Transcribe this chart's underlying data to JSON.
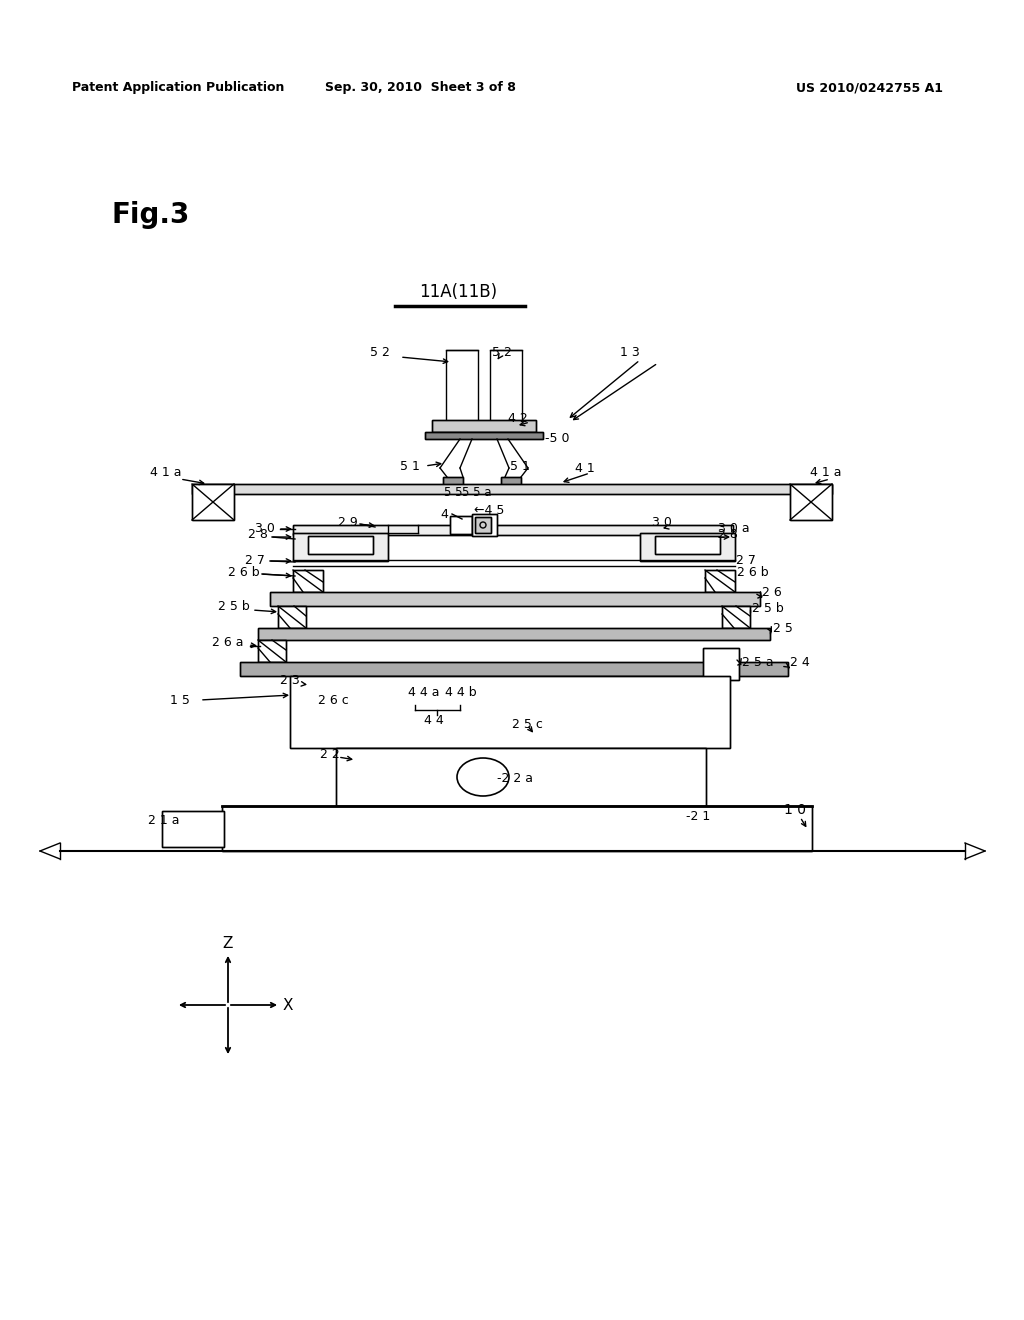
{
  "bg_color": "#ffffff",
  "line_color": "#000000",
  "lw": 1.0,
  "header_left": "Patent Application Publication",
  "header_center": "Sep. 30, 2010  Sheet 3 of 8",
  "header_right": "US 2010/0242755 A1",
  "fig_label": "Fig.3",
  "title_label": "11A(11B)"
}
